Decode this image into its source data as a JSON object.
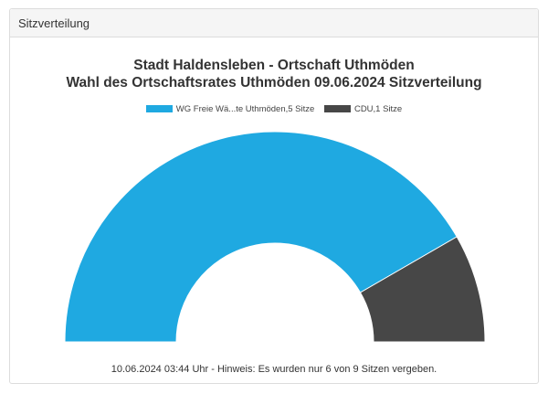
{
  "panel": {
    "header": "Sitzverteilung"
  },
  "chart_data": {
    "type": "pie",
    "subtype": "half-donut",
    "title": "Stadt Haldensleben - Ortschaft Uthmöden",
    "subtitle": "Wahl des Ortschaftsrates Uthmöden 09.06.2024 Sitzverteilung",
    "legend_position": "top",
    "series": [
      {
        "name": "WG Freie Wä...te Uthmöden,5 Sitze",
        "value": 5,
        "color": "#1fa9e1"
      },
      {
        "name": "CDU,1 Sitze",
        "value": 1,
        "color": "#474747"
      }
    ]
  },
  "footer": {
    "note": "10.06.2024 03:44 Uhr - Hinweis: Es wurden nur 6 von 9 Sitzen vergeben."
  }
}
